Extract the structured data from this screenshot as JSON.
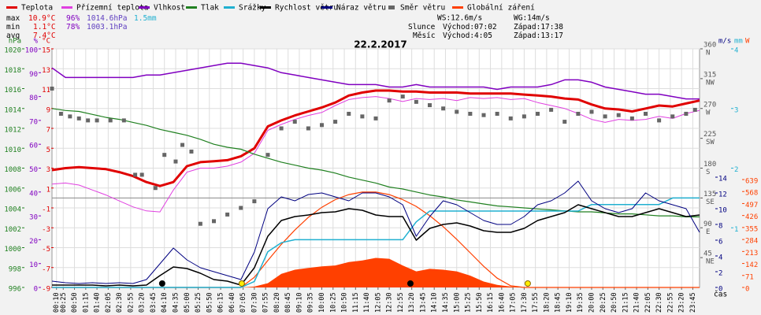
{
  "chart_data": {
    "type": "line",
    "title": "22.2.2017",
    "xlabel": "čas",
    "xlim": [
      0,
      1440
    ],
    "xticks": [
      {
        "value": 10,
        "label": "00:10"
      },
      {
        "value": 25,
        "label": "00:25"
      },
      {
        "value": 50,
        "label": "00:50"
      },
      {
        "value": 75,
        "label": "01:15"
      },
      {
        "value": 100,
        "label": "01:40"
      },
      {
        "value": 125,
        "label": "02:05"
      },
      {
        "value": 150,
        "label": "02:30"
      },
      {
        "value": 175,
        "label": "02:55"
      },
      {
        "value": 200,
        "label": "03:20"
      },
      {
        "value": 225,
        "label": "03:45"
      },
      {
        "value": 250,
        "label": "04:10"
      },
      {
        "value": 275,
        "label": "04:35"
      },
      {
        "value": 300,
        "label": "05:00"
      },
      {
        "value": 325,
        "label": "05:25"
      },
      {
        "value": 350,
        "label": "05:50"
      },
      {
        "value": 375,
        "label": "06:15"
      },
      {
        "value": 400,
        "label": "06:40"
      },
      {
        "value": 425,
        "label": "07:05"
      },
      {
        "value": 450,
        "label": "07:30"
      },
      {
        "value": 475,
        "label": "07:55"
      },
      {
        "value": 500,
        "label": "08:20"
      },
      {
        "value": 525,
        "label": "08:45"
      },
      {
        "value": 550,
        "label": "09:10"
      },
      {
        "value": 575,
        "label": "09:35"
      },
      {
        "value": 600,
        "label": "10:00"
      },
      {
        "value": 625,
        "label": "10:25"
      },
      {
        "value": 650,
        "label": "10:50"
      },
      {
        "value": 675,
        "label": "11:15"
      },
      {
        "value": 700,
        "label": "11:40"
      },
      {
        "value": 725,
        "label": "12:05"
      },
      {
        "value": 750,
        "label": "12:30"
      },
      {
        "value": 775,
        "label": "12:55"
      },
      {
        "value": 800,
        "label": "13:20"
      },
      {
        "value": 825,
        "label": "13:45"
      },
      {
        "value": 850,
        "label": "14:10"
      },
      {
        "value": 875,
        "label": "14:35"
      },
      {
        "value": 900,
        "label": "15:00"
      },
      {
        "value": 925,
        "label": "15:25"
      },
      {
        "value": 950,
        "label": "15:50"
      },
      {
        "value": 975,
        "label": "16:15"
      },
      {
        "value": 1000,
        "label": "16:40"
      },
      {
        "value": 1025,
        "label": "17:05"
      },
      {
        "value": 1050,
        "label": "17:30"
      },
      {
        "value": 1075,
        "label": "17:55"
      },
      {
        "value": 1100,
        "label": "18:20"
      },
      {
        "value": 1125,
        "label": "18:45"
      },
      {
        "value": 1150,
        "label": "19:10"
      },
      {
        "value": 1175,
        "label": "19:35"
      },
      {
        "value": 1200,
        "label": "20:00"
      },
      {
        "value": 1225,
        "label": "20:25"
      },
      {
        "value": 1250,
        "label": "20:50"
      },
      {
        "value": 1275,
        "label": "21:15"
      },
      {
        "value": 1300,
        "label": "21:40"
      },
      {
        "value": 1325,
        "label": "22:05"
      },
      {
        "value": 1350,
        "label": "22:30"
      },
      {
        "value": 1375,
        "label": "22:55"
      },
      {
        "value": 1400,
        "label": "23:20"
      },
      {
        "value": 1425,
        "label": "23:45"
      }
    ],
    "grid": true,
    "axes": {
      "hpa": {
        "label": "hPa",
        "color": "#208020",
        "lim": [
          996,
          1020
        ],
        "ticks": [
          1020,
          1018,
          1016,
          1014,
          1012,
          1010,
          1008,
          1006,
          1004,
          1002,
          1000,
          998,
          996
        ]
      },
      "pct": {
        "label": "%",
        "color": "#8000c0",
        "lim": [
          0,
          100
        ],
        "ticks": [
          100,
          90,
          80,
          70,
          60,
          50,
          40,
          30,
          20,
          10,
          0
        ]
      },
      "temp": {
        "label": "°C",
        "color": "#e00000",
        "lim": [
          -9,
          15
        ],
        "ticks": [
          15,
          13,
          11,
          9,
          7,
          5,
          3,
          1,
          -1,
          -3,
          -5,
          -7,
          -9
        ]
      },
      "dir": {
        "label": "",
        "color": "#555555",
        "lim": [
          0,
          360
        ],
        "ticks": [
          360,
          315,
          270,
          225,
          180,
          135,
          90,
          45
        ],
        "names": [
          "N",
          "NW",
          "W",
          "SW",
          "S",
          "SE",
          "E",
          "NE"
        ]
      },
      "wind": {
        "label": "m/s",
        "color": "#000080",
        "lim": [
          0,
          14
        ],
        "ticks": [
          14,
          12,
          10,
          8,
          6,
          4,
          2,
          0
        ]
      },
      "mm": {
        "label": "mm",
        "color": "#20b0d0",
        "lim": [
          0,
          4
        ],
        "ticks": [
          4,
          3,
          2,
          1
        ]
      },
      "rad": {
        "label": "W",
        "color": "#ff4000",
        "lim": [
          0,
          639
        ],
        "ticks": [
          639,
          568,
          497,
          426,
          355,
          284,
          213,
          142,
          71,
          0
        ]
      }
    },
    "x": [
      0,
      30,
      60,
      90,
      120,
      150,
      180,
      210,
      240,
      270,
      300,
      330,
      360,
      390,
      420,
      450,
      480,
      510,
      540,
      570,
      600,
      630,
      660,
      690,
      720,
      750,
      780,
      810,
      840,
      870,
      900,
      930,
      960,
      990,
      1020,
      1050,
      1080,
      1110,
      1140,
      1170,
      1200,
      1230,
      1260,
      1290,
      1320,
      1350,
      1380,
      1410,
      1440
    ],
    "series": [
      {
        "name": "Teplota",
        "color": "#e00000",
        "axis": "temp",
        "width": 3,
        "values": [
          2.8,
          3.0,
          3.1,
          3.0,
          2.9,
          2.6,
          2.2,
          1.6,
          1.2,
          1.6,
          3.2,
          3.6,
          3.7,
          3.8,
          4.2,
          5.0,
          7.2,
          7.8,
          8.3,
          8.7,
          9.1,
          9.6,
          10.3,
          10.6,
          10.8,
          10.8,
          10.7,
          10.7,
          10.6,
          10.6,
          10.6,
          10.5,
          10.5,
          10.5,
          10.5,
          10.4,
          10.3,
          10.2,
          10.0,
          9.9,
          9.4,
          9.0,
          8.9,
          8.7,
          9.0,
          9.3,
          9.2,
          9.5,
          9.8
        ]
      },
      {
        "name": "Přízemní teplota",
        "color": "#e040e0",
        "axis": "temp",
        "width": 1,
        "values": [
          1.4,
          1.5,
          1.3,
          0.8,
          0.3,
          -0.3,
          -0.9,
          -1.3,
          -1.4,
          0.8,
          2.6,
          3.0,
          3.0,
          3.2,
          3.6,
          4.5,
          6.8,
          7.4,
          7.9,
          8.3,
          8.6,
          9.3,
          9.9,
          10.1,
          10.2,
          10.0,
          9.7,
          10.0,
          9.9,
          10.0,
          9.8,
          10.1,
          10.0,
          10.1,
          9.9,
          10.0,
          9.6,
          9.3,
          9.0,
          8.5,
          7.9,
          7.6,
          7.9,
          7.8,
          7.9,
          8.2,
          8.0,
          8.5,
          8.8
        ]
      },
      {
        "name": "Vlhkost",
        "color": "#8000c0",
        "axis": "pct",
        "width": 1.5,
        "values": [
          92,
          88,
          88,
          88,
          88,
          88,
          88,
          89,
          89,
          90,
          91,
          92,
          93,
          94,
          94,
          93,
          92,
          90,
          89,
          88,
          87,
          86,
          85,
          85,
          85,
          84,
          84,
          85,
          84,
          84,
          84,
          84,
          84,
          83,
          84,
          84,
          84,
          85,
          87,
          87,
          86,
          84,
          83,
          82,
          81,
          81,
          80,
          79,
          79
        ]
      },
      {
        "name": "Tlak",
        "color": "#208020",
        "axis": "hpa",
        "width": 1.2,
        "values": [
          1014.0,
          1013.8,
          1013.7,
          1013.4,
          1013.1,
          1012.9,
          1012.6,
          1012.3,
          1011.9,
          1011.6,
          1011.3,
          1010.9,
          1010.4,
          1010.1,
          1009.9,
          1009.4,
          1009.0,
          1008.6,
          1008.3,
          1008.0,
          1007.8,
          1007.5,
          1007.1,
          1006.8,
          1006.5,
          1006.1,
          1005.9,
          1005.6,
          1005.3,
          1005.1,
          1004.8,
          1004.6,
          1004.4,
          1004.2,
          1004.1,
          1004.0,
          1003.9,
          1003.8,
          1003.7,
          1003.6,
          1003.6,
          1003.5,
          1003.4,
          1003.4,
          1003.3,
          1003.2,
          1003.2,
          1003.1,
          1003.1
        ]
      },
      {
        "name": "Srážky",
        "color": "#20b0d0",
        "axis": "mm",
        "width": 1.5,
        "values": [
          0,
          0,
          0,
          0,
          0,
          0,
          0,
          0,
          0,
          0,
          0,
          0,
          0,
          0,
          0,
          0.1,
          0.6,
          0.75,
          0.8,
          0.8,
          0.8,
          0.8,
          0.8,
          0.8,
          0.8,
          0.8,
          0.8,
          1.1,
          1.28,
          1.28,
          1.28,
          1.28,
          1.28,
          1.28,
          1.28,
          1.28,
          1.28,
          1.28,
          1.28,
          1.28,
          1.39,
          1.39,
          1.39,
          1.39,
          1.39,
          1.39,
          1.5,
          1.5,
          1.5
        ]
      },
      {
        "name": "Rychlost větru",
        "color": "#000000",
        "axis": "wind",
        "width": 1.5,
        "values": [
          0.3,
          0.3,
          0.3,
          0.3,
          0.2,
          0.3,
          0.2,
          0.3,
          1.5,
          2.6,
          2.4,
          1.8,
          1.0,
          0.8,
          0.3,
          2.5,
          6.5,
          8.5,
          9.0,
          9.2,
          9.5,
          9.6,
          10.0,
          9.8,
          9.2,
          9.0,
          9.0,
          6.0,
          7.5,
          8.0,
          8.2,
          7.8,
          7.2,
          7.0,
          7.0,
          7.5,
          8.5,
          9.0,
          9.5,
          10.5,
          10.0,
          9.5,
          9.0,
          9.0,
          9.5,
          10.0,
          9.5,
          9.0,
          9.2
        ]
      },
      {
        "name": "Náraz větru",
        "color": "#000080",
        "axis": "wind",
        "width": 1,
        "values": [
          0.8,
          0.6,
          0.5,
          0.6,
          0.5,
          0.6,
          0.5,
          1.0,
          3.0,
          5.0,
          3.5,
          2.5,
          2.0,
          1.5,
          1.0,
          4.5,
          10.0,
          11.5,
          11.0,
          11.8,
          12.0,
          11.5,
          11.0,
          12.0,
          12.0,
          11.5,
          10.5,
          6.5,
          9.0,
          11.0,
          10.5,
          9.5,
          8.5,
          8.0,
          8.0,
          9.0,
          10.5,
          11.0,
          12.0,
          13.5,
          11.0,
          10.0,
          9.5,
          10.0,
          12.0,
          11.0,
          10.5,
          10.0,
          7.0
        ]
      },
      {
        "name": "Směr větru",
        "color": "#666666",
        "axis": "dir",
        "style": "points",
        "x": [
          0,
          20,
          40,
          60,
          80,
          100,
          130,
          160,
          185,
          200,
          230,
          250,
          275,
          290,
          310,
          330,
          360,
          390,
          420,
          450,
          480,
          510,
          540,
          570,
          600,
          630,
          660,
          690,
          720,
          750,
          780,
          810,
          840,
          870,
          900,
          930,
          960,
          990,
          1020,
          1050,
          1080,
          1110,
          1140,
          1170,
          1200,
          1230,
          1260,
          1290,
          1320,
          1350,
          1380,
          1410,
          1430
        ],
        "values": [
          300,
          262,
          258,
          255,
          252,
          252,
          252,
          252,
          170,
          170,
          150,
          200,
          190,
          215,
          205,
          96,
          100,
          110,
          120,
          130,
          200,
          240,
          250,
          240,
          245,
          250,
          262,
          258,
          255,
          282,
          288,
          280,
          275,
          270,
          265,
          262,
          260,
          262,
          255,
          258,
          262,
          268,
          250,
          262,
          265,
          258,
          260,
          255,
          262,
          252,
          258,
          262,
          268
        ]
      },
      {
        "name": "Globální záření",
        "color": "#ff4000",
        "axis": "rad",
        "style": "area",
        "values": [
          0,
          0,
          0,
          0,
          0,
          0,
          0,
          0,
          0,
          0,
          0,
          0,
          0,
          0,
          0,
          5,
          25,
          80,
          105,
          115,
          125,
          130,
          150,
          160,
          175,
          170,
          130,
          95,
          110,
          105,
          95,
          70,
          35,
          15,
          5,
          0,
          0,
          0,
          0,
          0,
          0,
          0,
          0,
          0,
          0,
          0,
          0,
          0,
          0
        ],
        "clear_sky": [
          0,
          0,
          0,
          0,
          0,
          0,
          0,
          0,
          0,
          0,
          0,
          0,
          0,
          0,
          0,
          60,
          160,
          255,
          340,
          415,
          475,
          520,
          550,
          565,
          565,
          550,
          520,
          480,
          425,
          360,
          285,
          205,
          125,
          55,
          10,
          0,
          0,
          0,
          0,
          0,
          0,
          0,
          0,
          0,
          0,
          0,
          0,
          0,
          0
        ]
      }
    ],
    "header": {
      "stats": [
        {
          "label": "max",
          "items": [
            "10.9°C",
            "96%",
            "1014.6hPa",
            "1.5mm"
          ]
        },
        {
          "label": "min",
          "items": [
            "1.1°C",
            "78%",
            "1003.1hPa"
          ]
        },
        {
          "label": "avg",
          "items": [
            "7.4°C"
          ]
        }
      ],
      "ws": "WS:12.6m/s",
      "wg": "WG:14m/s",
      "sun": {
        "label": "Slunce",
        "rise_label": "Východ:",
        "rise": "07:02",
        "set_label": "Západ:",
        "set": "17:38"
      },
      "moon": {
        "label": "Měsíc",
        "rise_label": "Východ:",
        "rise": "4:05",
        "set_label": "Západ:",
        "set": "13:17"
      }
    }
  }
}
